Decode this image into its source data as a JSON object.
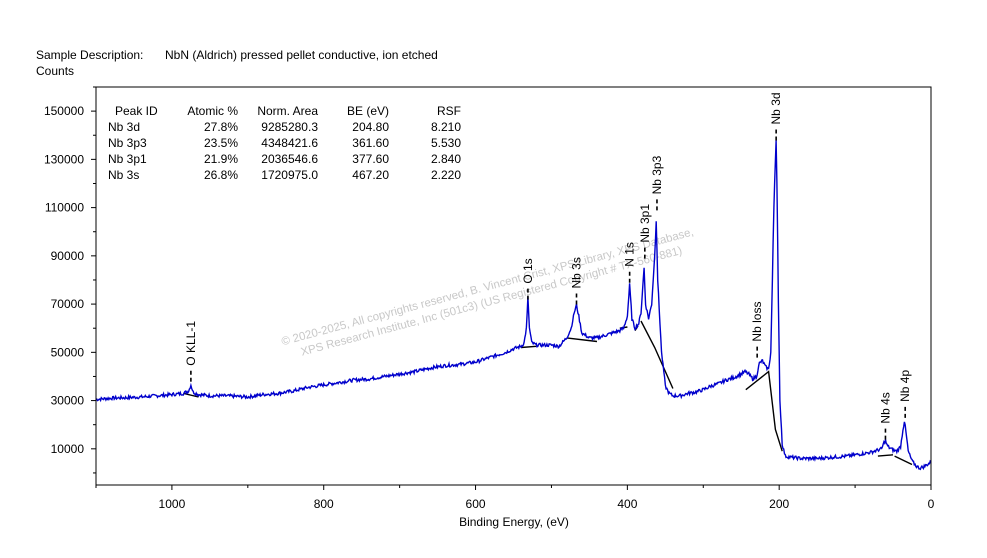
{
  "chart_data": {
    "type": "line",
    "sample_label": "Sample Description:",
    "sample_value": "NbN (Aldrich) pressed pellet conductive, ion etched",
    "ylabel": "Counts",
    "xlabel": "Binding Energy, (eV)",
    "xlim": [
      1100,
      0
    ],
    "ylim": [
      -5000,
      160000
    ],
    "x_ticks": [
      1000,
      800,
      600,
      400,
      200,
      0
    ],
    "x_tick_labels": [
      "1000",
      "800",
      "600",
      "400",
      "200",
      "0"
    ],
    "y_ticks": [
      10000,
      30000,
      50000,
      70000,
      90000,
      110000,
      130000,
      150000
    ],
    "y_tick_labels": [
      "10000",
      "30000",
      "50000",
      "70000",
      "90000",
      "110000",
      "130000",
      "150000"
    ],
    "table": {
      "headers": [
        "Peak ID",
        "Atomic %",
        "Norm. Area",
        "BE (eV)",
        "RSF"
      ],
      "rows": [
        [
          "Nb 3d",
          "27.8%",
          "9285280.3",
          "204.80",
          "8.210"
        ],
        [
          "Nb 3p3",
          "23.5%",
          "4348421.6",
          "361.60",
          "5.530"
        ],
        [
          "Nb 3p1",
          "21.9%",
          "2036546.6",
          "377.60",
          "2.840"
        ],
        [
          "Nb 3s",
          "26.8%",
          "1720975.0",
          "467.20",
          "2.220"
        ]
      ]
    },
    "peak_labels": [
      {
        "label": "O KLL-1",
        "be": 975,
        "y": 37000
      },
      {
        "label": "O 1s",
        "be": 531,
        "y": 71000
      },
      {
        "label": "Nb 3s",
        "be": 467,
        "y": 69000
      },
      {
        "label": "N 1s",
        "be": 397,
        "y": 78000
      },
      {
        "label": "Nb 3p1",
        "be": 377,
        "y": 88000
      },
      {
        "label": "Nb 3p3",
        "be": 361,
        "y": 108000
      },
      {
        "label": "Nb loss",
        "be": 229,
        "y": 47000
      },
      {
        "label": "Nb 3d",
        "be": 204,
        "y": 137000
      },
      {
        "label": "Nb 4s",
        "be": 60,
        "y": 13000
      },
      {
        "label": "Nb 4p",
        "be": 34,
        "y": 22000
      }
    ],
    "series": [
      {
        "name": "survey",
        "color": "#0000cc",
        "x": [
          1100,
          1080,
          1060,
          1040,
          1020,
          1000,
          985,
          978,
          975,
          972,
          965,
          950,
          930,
          900,
          880,
          860,
          840,
          820,
          800,
          780,
          760,
          740,
          720,
          700,
          680,
          660,
          640,
          620,
          600,
          590,
          580,
          570,
          560,
          550,
          540,
          536,
          533,
          531,
          529,
          526,
          520,
          500,
          490,
          480,
          474,
          470,
          467,
          464,
          460,
          450,
          440,
          430,
          420,
          410,
          405,
          400,
          397,
          394,
          390,
          385,
          382,
          378,
          376,
          372,
          368,
          364,
          362,
          360,
          357,
          355,
          352,
          350,
          345,
          340,
          330,
          320,
          310,
          300,
          290,
          280,
          270,
          260,
          250,
          245,
          240,
          235,
          230,
          226,
          222,
          218,
          214,
          211,
          209,
          207,
          205,
          204,
          203,
          201,
          199,
          196,
          192,
          185,
          170,
          150,
          130,
          110,
          100,
          90,
          80,
          70,
          65,
          62,
          60,
          58,
          55,
          50,
          45,
          40,
          37,
          35,
          33,
          30,
          25,
          20,
          15,
          10,
          5,
          0
        ],
        "y": [
          30500,
          31000,
          31200,
          31500,
          32000,
          32500,
          33000,
          34000,
          36500,
          33500,
          32500,
          32000,
          32000,
          31500,
          32500,
          33000,
          34000,
          35500,
          36500,
          37500,
          38500,
          39000,
          40000,
          41000,
          42000,
          43500,
          44500,
          45000,
          46000,
          47000,
          48000,
          49000,
          50000,
          51500,
          52500,
          54000,
          60000,
          72500,
          60000,
          54000,
          53000,
          53000,
          52500,
          56000,
          60000,
          66500,
          69500,
          65000,
          58000,
          56000,
          56000,
          57000,
          58000,
          59000,
          60000,
          65000,
          78000,
          64000,
          60000,
          62000,
          66500,
          85000,
          70000,
          64000,
          70000,
          90000,
          105000,
          80000,
          62000,
          50000,
          42000,
          36000,
          33000,
          32000,
          32000,
          33000,
          33500,
          34500,
          36000,
          37000,
          38500,
          39500,
          41000,
          42000,
          41000,
          39000,
          40000,
          45500,
          46500,
          44000,
          43000,
          50000,
          80000,
          110000,
          130000,
          138500,
          120000,
          70000,
          30000,
          12000,
          7000,
          6500,
          6000,
          6000,
          6500,
          7000,
          7500,
          8000,
          8500,
          9500,
          10000,
          12500,
          13500,
          11500,
          10500,
          9500,
          9000,
          11000,
          18000,
          21500,
          17000,
          9000,
          5000,
          3000,
          2000,
          2500,
          3500,
          4500
        ]
      }
    ],
    "backgrounds": [
      {
        "x": [
          985,
          965
        ],
        "y": [
          33000,
          31500
        ]
      },
      {
        "x": [
          540,
          520
        ],
        "y": [
          52000,
          52500
        ]
      },
      {
        "x": [
          480,
          440
        ],
        "y": [
          56000,
          54500
        ]
      },
      {
        "x": [
          410,
          400
        ],
        "y": [
          60000,
          60500
        ]
      },
      {
        "x": [
          390,
          386
        ],
        "y": [
          59000,
          61000
        ]
      },
      {
        "x": [
          382,
          364,
          340
        ],
        "y": [
          63000,
          52000,
          35000
        ]
      },
      {
        "x": [
          244,
          214,
          205,
          196
        ],
        "y": [
          34500,
          42000,
          18000,
          9000
        ]
      },
      {
        "x": [
          70,
          50
        ],
        "y": [
          7000,
          7500
        ]
      },
      {
        "x": [
          48,
          25
        ],
        "y": [
          7000,
          3500
        ]
      }
    ]
  },
  "watermark": {
    "line1": "©  2020-2025,  All copyrights reserved,   B. Vincent Crist,  XPS Library,  XPS Database,",
    "line2": "XPS Research Institute, Inc (501c3)   (US Registered Copyright # TX-560-881)"
  }
}
